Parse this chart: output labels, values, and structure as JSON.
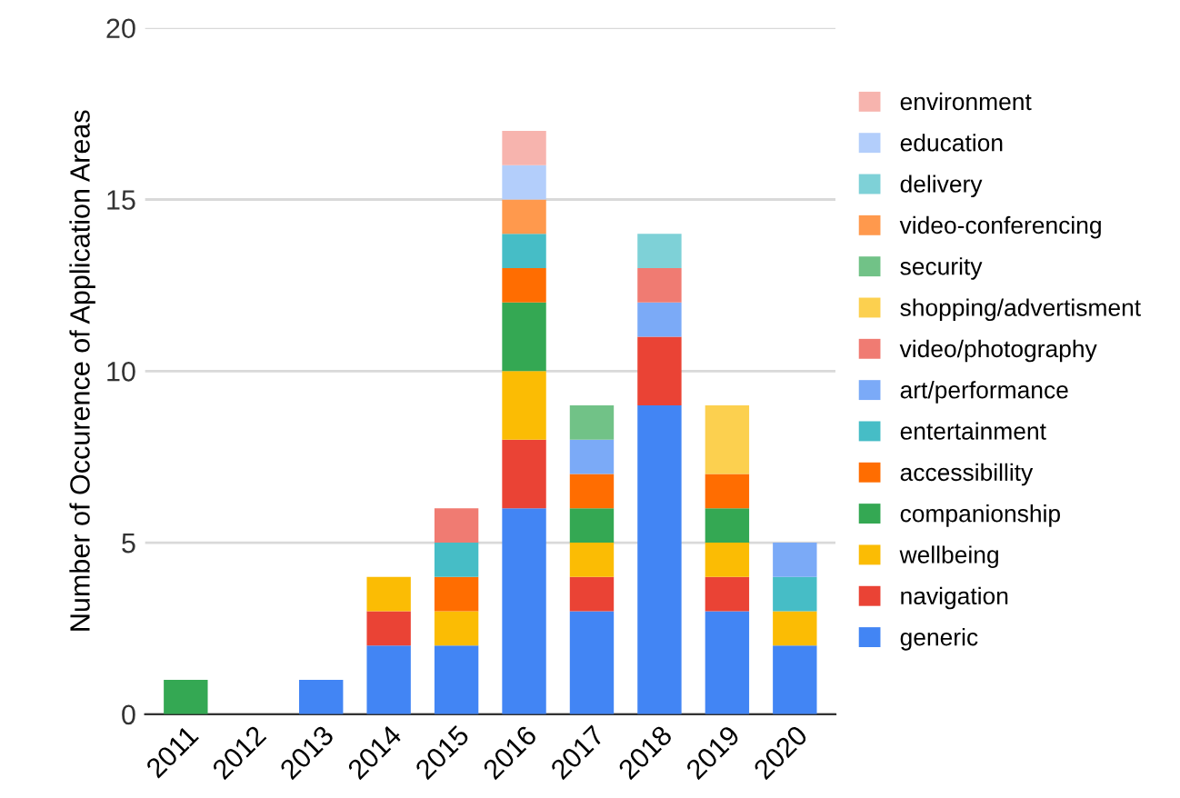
{
  "chart_data": {
    "type": "bar",
    "stacked": true,
    "ylabel": "Number of Occurence of Application Areas",
    "categories": [
      "2011",
      "2012",
      "2013",
      "2014",
      "2015",
      "2016",
      "2017",
      "2018",
      "2019",
      "2020"
    ],
    "series": [
      {
        "name": "generic",
        "color": "#4285f4",
        "values": [
          0,
          0,
          1,
          2,
          2,
          6,
          3,
          9,
          3,
          2
        ]
      },
      {
        "name": "navigation",
        "color": "#ea4335",
        "values": [
          0,
          0,
          0,
          1,
          0,
          2,
          1,
          2,
          1,
          0
        ]
      },
      {
        "name": "wellbeing",
        "color": "#fbbc04",
        "values": [
          0,
          0,
          0,
          1,
          1,
          2,
          1,
          0,
          1,
          1
        ]
      },
      {
        "name": "companionship",
        "color": "#34a853",
        "values": [
          1,
          0,
          0,
          0,
          0,
          2,
          1,
          0,
          1,
          0
        ]
      },
      {
        "name": "accessibillity",
        "color": "#ff6d01",
        "values": [
          0,
          0,
          0,
          0,
          1,
          1,
          1,
          0,
          1,
          0
        ]
      },
      {
        "name": "entertainment",
        "color": "#46bdc6",
        "values": [
          0,
          0,
          0,
          0,
          1,
          1,
          0,
          0,
          0,
          1
        ]
      },
      {
        "name": "art/performance",
        "color": "#7baaf7",
        "values": [
          0,
          0,
          0,
          0,
          0,
          0,
          1,
          1,
          0,
          1
        ]
      },
      {
        "name": "video/photography",
        "color": "#f07b72",
        "values": [
          0,
          0,
          0,
          0,
          1,
          0,
          0,
          1,
          0,
          0
        ]
      },
      {
        "name": "shopping/advertisment",
        "color": "#fcd04f",
        "values": [
          0,
          0,
          0,
          0,
          0,
          0,
          0,
          0,
          2,
          0
        ]
      },
      {
        "name": "security",
        "color": "#71c287",
        "values": [
          0,
          0,
          0,
          0,
          0,
          0,
          1,
          0,
          0,
          0
        ]
      },
      {
        "name": "video-conferencing",
        "color": "#ff994d",
        "values": [
          0,
          0,
          0,
          0,
          0,
          1,
          0,
          0,
          0,
          0
        ]
      },
      {
        "name": "delivery",
        "color": "#7ed1d7",
        "values": [
          0,
          0,
          0,
          0,
          0,
          0,
          0,
          1,
          0,
          0
        ]
      },
      {
        "name": "education",
        "color": "#b3cefb",
        "values": [
          0,
          0,
          0,
          0,
          0,
          1,
          0,
          0,
          0,
          0
        ]
      },
      {
        "name": "environment",
        "color": "#f7b4ae",
        "values": [
          0,
          0,
          0,
          0,
          0,
          1,
          0,
          0,
          0,
          0
        ]
      }
    ],
    "ylim": [
      0,
      20
    ],
    "yticks": [
      0,
      5,
      10,
      15,
      20
    ],
    "grid": "y",
    "legend": "right"
  }
}
